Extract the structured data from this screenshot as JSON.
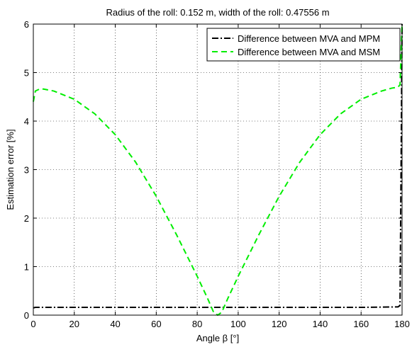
{
  "chart_data": {
    "type": "line",
    "title": "Radius of the roll: 0.152 m, width of the roll: 0.47556 m",
    "xlabel": "Angle β [°]",
    "ylabel": "Estimation error [%]",
    "xlim": [
      0,
      180
    ],
    "ylim": [
      0,
      6
    ],
    "xticks": [
      0,
      20,
      40,
      60,
      80,
      100,
      120,
      140,
      160,
      180
    ],
    "yticks": [
      0,
      1,
      2,
      3,
      4,
      5,
      6
    ],
    "grid": true,
    "legend_position": "top-right",
    "series": [
      {
        "name": "Difference between MVA and MPM",
        "color": "#000000",
        "style": "dash-dot",
        "x": [
          0,
          1,
          10,
          20,
          40,
          60,
          80,
          90,
          100,
          120,
          140,
          160,
          178,
          179,
          179.5,
          180
        ],
        "y": [
          0.15,
          0.16,
          0.16,
          0.16,
          0.16,
          0.16,
          0.16,
          0.16,
          0.16,
          0.16,
          0.16,
          0.16,
          0.17,
          0.2,
          3.0,
          6.0
        ]
      },
      {
        "name": "Difference between MVA and MSM",
        "color": "#00ee00",
        "style": "dashed",
        "x": [
          0,
          1,
          3,
          5,
          10,
          20,
          30,
          40,
          50,
          60,
          70,
          80,
          85,
          88,
          90,
          92,
          95,
          100,
          110,
          120,
          130,
          140,
          150,
          160,
          170,
          175,
          178,
          179,
          179.5,
          180
        ],
        "y": [
          4.4,
          4.62,
          4.66,
          4.66,
          4.62,
          4.45,
          4.15,
          3.72,
          3.15,
          2.45,
          1.65,
          0.8,
          0.35,
          0.06,
          0.0,
          0.06,
          0.35,
          0.8,
          1.65,
          2.45,
          3.15,
          3.72,
          4.15,
          4.45,
          4.62,
          4.68,
          4.7,
          4.75,
          5.4,
          6.0
        ]
      }
    ]
  }
}
